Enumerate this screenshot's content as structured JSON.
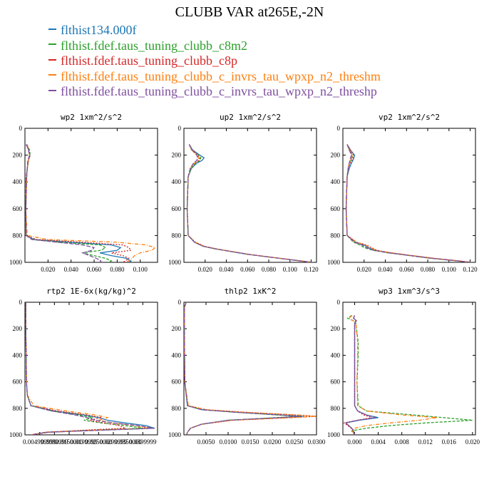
{
  "figure": {
    "title": "CLUBB VAR at265E,-2N"
  },
  "legend": [
    {
      "label": "flthist134.000f",
      "color": "#1f77b4"
    },
    {
      "label": "flthist.fdef.taus_tuning_clubb_c8m2",
      "color": "#2ca02c"
    },
    {
      "label": "flthist.fdef.taus_tuning_clubb_c8p",
      "color": "#d62728"
    },
    {
      "label": "flthist.fdef.taus_tuning_clubb_c_invrs_tau_wpxp_n2_threshm",
      "color": "#ff7f0e"
    },
    {
      "label": "flthist.fdef.taus_tuning_clubb_c_invrs_tau_wpxp_n2_threshp",
      "color": "#7f4fa0"
    }
  ],
  "chart_data": [
    {
      "type": "line",
      "title": "wp2  1xm^2/s^2",
      "xlim": [
        0.0,
        0.115
      ],
      "ylim": [
        1000,
        0
      ],
      "xticks": [
        0.02,
        0.04,
        0.06,
        0.08,
        0.1
      ],
      "xtick_labels": [
        "0.020",
        "0.040",
        "0.060",
        "0.080",
        "0.100"
      ],
      "yticks": [
        0,
        200,
        400,
        600,
        800,
        1000
      ],
      "y": [
        120,
        160,
        200,
        240,
        300,
        370,
        600,
        800,
        830,
        850,
        870,
        890,
        910,
        930,
        950,
        970,
        990,
        1000
      ],
      "series": [
        {
          "color": "#1f77b4",
          "dash": "solid",
          "values": [
            0.002,
            0.003,
            0.004,
            0.003,
            0.002,
            0.0015,
            0.0008,
            0.001,
            0.008,
            0.04,
            0.075,
            0.083,
            0.08,
            0.065,
            0.075,
            0.088,
            0.092,
            0.09
          ]
        },
        {
          "color": "#2ca02c",
          "dash": "4,2",
          "values": [
            0.001,
            0.004,
            0.0045,
            0.003,
            0.002,
            0.001,
            0.0008,
            0.001,
            0.007,
            0.03,
            0.065,
            0.07,
            0.066,
            0.05,
            0.06,
            0.07,
            0.075,
            0.072
          ]
        },
        {
          "color": "#d62728",
          "dash": "2,2",
          "values": [
            0.002,
            0.003,
            0.0045,
            0.003,
            0.002,
            0.0015,
            0.0008,
            0.001,
            0.01,
            0.05,
            0.085,
            0.09,
            0.092,
            0.075,
            0.085,
            0.09,
            0.087,
            0.085
          ]
        },
        {
          "color": "#ff7f0e",
          "dash": "5,2,1,2",
          "values": [
            0.002,
            0.003,
            0.004,
            0.003,
            0.002,
            0.0015,
            0.0008,
            0.002,
            0.02,
            0.08,
            0.105,
            0.113,
            0.11,
            0.1,
            0.095,
            0.093,
            0.09,
            0.088
          ]
        },
        {
          "color": "#7f4fa0",
          "dash": "6,2",
          "values": [
            0.001,
            0.003,
            0.004,
            0.0025,
            0.002,
            0.001,
            0.0008,
            0.001,
            0.006,
            0.028,
            0.05,
            0.06,
            0.058,
            0.05,
            0.056,
            0.062,
            0.066,
            0.065
          ]
        }
      ]
    },
    {
      "type": "line",
      "title": "up2  1xm^2/s^2",
      "xlim": [
        0.0,
        0.125
      ],
      "ylim": [
        1000,
        0
      ],
      "xticks": [
        0.02,
        0.04,
        0.06,
        0.08,
        0.1,
        0.12
      ],
      "xtick_labels": [
        "0.020",
        "0.040",
        "0.060",
        "0.080",
        "0.100",
        "0.120"
      ],
      "yticks": [
        0,
        200,
        400,
        600,
        800,
        1000
      ],
      "y": [
        120,
        160,
        200,
        220,
        240,
        260,
        300,
        360,
        600,
        800,
        850,
        880,
        900,
        920,
        940,
        960,
        980,
        1000
      ],
      "series": [
        {
          "color": "#1f77b4",
          "dash": "solid",
          "values": [
            0.005,
            0.008,
            0.015,
            0.019,
            0.017,
            0.012,
            0.007,
            0.004,
            0.003,
            0.004,
            0.01,
            0.018,
            0.03,
            0.045,
            0.06,
            0.08,
            0.1,
            0.122
          ]
        },
        {
          "color": "#2ca02c",
          "dash": "4,2",
          "values": [
            0.005,
            0.007,
            0.014,
            0.016,
            0.015,
            0.011,
            0.007,
            0.004,
            0.003,
            0.004,
            0.01,
            0.018,
            0.03,
            0.045,
            0.06,
            0.08,
            0.1,
            0.12
          ]
        },
        {
          "color": "#d62728",
          "dash": "2,2",
          "values": [
            0.005,
            0.008,
            0.013,
            0.015,
            0.014,
            0.01,
            0.006,
            0.004,
            0.003,
            0.004,
            0.011,
            0.019,
            0.031,
            0.046,
            0.061,
            0.081,
            0.1,
            0.12
          ]
        },
        {
          "color": "#ff7f0e",
          "dash": "5,2,1,2",
          "values": [
            0.005,
            0.007,
            0.012,
            0.014,
            0.013,
            0.01,
            0.006,
            0.004,
            0.003,
            0.004,
            0.011,
            0.019,
            0.031,
            0.046,
            0.061,
            0.081,
            0.101,
            0.121
          ]
        },
        {
          "color": "#7f4fa0",
          "dash": "6,2",
          "values": [
            0.005,
            0.008,
            0.012,
            0.013,
            0.012,
            0.009,
            0.006,
            0.004,
            0.003,
            0.004,
            0.01,
            0.018,
            0.03,
            0.045,
            0.06,
            0.08,
            0.1,
            0.12
          ]
        }
      ]
    },
    {
      "type": "line",
      "title": "vp2  1xm^2/s^2",
      "xlim": [
        0.0,
        0.125
      ],
      "ylim": [
        1000,
        0
      ],
      "xticks": [
        0.02,
        0.04,
        0.06,
        0.08,
        0.1,
        0.12
      ],
      "xtick_labels": [
        "0.020",
        "0.040",
        "0.060",
        "0.080",
        "0.100",
        "0.120"
      ],
      "yticks": [
        0,
        200,
        400,
        600,
        800,
        1000
      ],
      "y": [
        120,
        160,
        200,
        230,
        260,
        300,
        360,
        600,
        800,
        850,
        870,
        890,
        910,
        930,
        950,
        970,
        990,
        1000
      ],
      "series": [
        {
          "color": "#1f77b4",
          "dash": "solid",
          "values": [
            0.004,
            0.007,
            0.011,
            0.01,
            0.008,
            0.006,
            0.004,
            0.003,
            0.004,
            0.012,
            0.02,
            0.024,
            0.03,
            0.045,
            0.065,
            0.085,
            0.11,
            0.122
          ]
        },
        {
          "color": "#2ca02c",
          "dash": "4,2",
          "values": [
            0.004,
            0.006,
            0.009,
            0.008,
            0.006,
            0.005,
            0.004,
            0.003,
            0.004,
            0.01,
            0.016,
            0.02,
            0.028,
            0.043,
            0.063,
            0.083,
            0.108,
            0.12
          ]
        },
        {
          "color": "#d62728",
          "dash": "2,2",
          "values": [
            0.004,
            0.007,
            0.01,
            0.009,
            0.007,
            0.005,
            0.004,
            0.003,
            0.004,
            0.013,
            0.022,
            0.027,
            0.032,
            0.046,
            0.066,
            0.086,
            0.11,
            0.121
          ]
        },
        {
          "color": "#ff7f0e",
          "dash": "5,2,1,2",
          "values": [
            0.004,
            0.006,
            0.009,
            0.008,
            0.006,
            0.005,
            0.004,
            0.003,
            0.004,
            0.013,
            0.021,
            0.026,
            0.031,
            0.046,
            0.066,
            0.086,
            0.11,
            0.121
          ]
        },
        {
          "color": "#7f4fa0",
          "dash": "6,2",
          "values": [
            0.004,
            0.006,
            0.008,
            0.007,
            0.006,
            0.005,
            0.004,
            0.003,
            0.004,
            0.011,
            0.018,
            0.022,
            0.029,
            0.044,
            0.064,
            0.084,
            0.109,
            0.12
          ]
        }
      ]
    },
    {
      "type": "line",
      "title": "rtp2  1E-6x(kg/kg)^2",
      "xlim": [
        0.0,
        0.045
      ],
      "ylim": [
        1000,
        0
      ],
      "xticks": [
        0.005,
        0.01,
        0.015,
        0.02,
        0.025,
        0.03,
        0.035,
        0.04
      ],
      "xtick_labels": [
        "0.004999999",
        "0.0099999",
        "0.0150000",
        "0.0199999",
        "0.0250000",
        "0.0299999",
        "0.0350000",
        "0.0399999"
      ],
      "yticks": [
        0,
        200,
        400,
        600,
        800,
        1000
      ],
      "y": [
        0,
        200,
        400,
        600,
        700,
        780,
        820,
        850,
        870,
        890,
        910,
        930,
        950,
        965,
        980,
        1000
      ],
      "series": [
        {
          "color": "#1f77b4",
          "dash": "solid",
          "values": [
            0.0003,
            0.0003,
            0.0004,
            0.0005,
            0.0008,
            0.002,
            0.01,
            0.02,
            0.025,
            0.028,
            0.034,
            0.041,
            0.044,
            0.025,
            0.008,
            0.002
          ]
        },
        {
          "color": "#2ca02c",
          "dash": "4,2",
          "values": [
            0.0003,
            0.0003,
            0.0004,
            0.0005,
            0.0008,
            0.002,
            0.009,
            0.018,
            0.023,
            0.02,
            0.026,
            0.034,
            0.04,
            0.022,
            0.007,
            0.002
          ]
        },
        {
          "color": "#d62728",
          "dash": "2,2",
          "values": [
            0.0003,
            0.0003,
            0.0004,
            0.0005,
            0.0008,
            0.002,
            0.011,
            0.021,
            0.026,
            0.022,
            0.027,
            0.032,
            0.034,
            0.02,
            0.007,
            0.002
          ]
        },
        {
          "color": "#ff7f0e",
          "dash": "5,2,1,2",
          "values": [
            0.0003,
            0.0003,
            0.0004,
            0.0005,
            0.0008,
            0.003,
            0.014,
            0.024,
            0.028,
            0.025,
            0.03,
            0.037,
            0.042,
            0.024,
            0.008,
            0.002
          ]
        },
        {
          "color": "#7f4fa0",
          "dash": "6,2",
          "values": [
            0.0003,
            0.0003,
            0.0004,
            0.0005,
            0.0008,
            0.002,
            0.009,
            0.017,
            0.021,
            0.024,
            0.03,
            0.038,
            0.044,
            0.026,
            0.008,
            0.002
          ]
        }
      ]
    },
    {
      "type": "line",
      "title": "thlp2  1xK^2",
      "xlim": [
        0.0,
        0.03
      ],
      "ylim": [
        1000,
        0
      ],
      "xticks": [
        0.005,
        0.01,
        0.015,
        0.02,
        0.025,
        0.03
      ],
      "xtick_labels": [
        "0.0050",
        "0.0100",
        "0.0150",
        "0.0200",
        "0.0250",
        "0.0300"
      ],
      "yticks": [
        0,
        200,
        400,
        600,
        800,
        1000
      ],
      "y": [
        0,
        20,
        40,
        200,
        600,
        780,
        810,
        830,
        850,
        860,
        870,
        890,
        920,
        950,
        980,
        1000
      ],
      "series": [
        {
          "color": "#1f77b4",
          "dash": "solid",
          "values": [
            0.0005,
            0.0003,
            0.0001,
            0.0001,
            0.0002,
            0.0008,
            0.004,
            0.012,
            0.022,
            0.027,
            0.022,
            0.01,
            0.004,
            0.0015,
            0.0008,
            0.0006
          ]
        },
        {
          "color": "#2ca02c",
          "dash": "4,2",
          "values": [
            0.0005,
            0.0003,
            0.0001,
            0.0001,
            0.0002,
            0.0008,
            0.004,
            0.012,
            0.021,
            0.026,
            0.021,
            0.01,
            0.004,
            0.0015,
            0.0008,
            0.0006
          ]
        },
        {
          "color": "#d62728",
          "dash": "2,2",
          "values": [
            0.0005,
            0.0003,
            0.0001,
            0.0001,
            0.0002,
            0.0009,
            0.005,
            0.014,
            0.025,
            0.03,
            0.024,
            0.011,
            0.004,
            0.0015,
            0.0008,
            0.0006
          ]
        },
        {
          "color": "#ff7f0e",
          "dash": "5,2,1,2",
          "values": [
            0.0005,
            0.0003,
            0.0001,
            0.0001,
            0.0002,
            0.001,
            0.005,
            0.014,
            0.026,
            0.03,
            0.025,
            0.011,
            0.004,
            0.0015,
            0.0008,
            0.0006
          ]
        },
        {
          "color": "#7f4fa0",
          "dash": "6,2",
          "values": [
            0.0005,
            0.0003,
            0.0001,
            0.0001,
            0.0002,
            0.0008,
            0.004,
            0.012,
            0.022,
            0.026,
            0.022,
            0.01,
            0.004,
            0.0015,
            0.0008,
            0.0006
          ]
        }
      ]
    },
    {
      "type": "line",
      "title": "wp3  1xm^3/s^3",
      "xlim": [
        -0.002,
        0.0205
      ],
      "ylim": [
        1000,
        0
      ],
      "xticks": [
        0.0,
        0.004,
        0.008,
        0.012,
        0.016,
        0.02
      ],
      "xtick_labels": [
        "0.000",
        "0.004",
        "0.008",
        "0.012",
        "0.016",
        "0.020"
      ],
      "yticks": [
        0,
        200,
        400,
        600,
        800,
        1000
      ],
      "y": [
        100,
        120,
        140,
        160,
        200,
        300,
        400,
        600,
        780,
        820,
        850,
        870,
        890,
        910,
        930,
        950,
        970,
        1000
      ],
      "series": [
        {
          "color": "#1f77b4",
          "dash": "solid",
          "values": [
            0.0,
            -0.0002,
            0.0003,
            0.0,
            0.0,
            0.0,
            0.0,
            0.0,
            0.0,
            0.0005,
            0.002,
            0.004,
            0.0008,
            -0.0015,
            -0.001,
            -0.0005,
            -0.0002,
            0.0
          ]
        },
        {
          "color": "#2ca02c",
          "dash": "4,2",
          "values": [
            -0.0005,
            -0.0012,
            -0.0002,
            0.0002,
            0.0003,
            0.0006,
            0.0006,
            0.0004,
            0.0006,
            0.002,
            0.01,
            0.015,
            0.02,
            0.012,
            0.006,
            0.002,
            -0.0005,
            0.0
          ]
        },
        {
          "color": "#d62728",
          "dash": "2,2",
          "values": [
            0.0,
            -0.0002,
            0.0003,
            0.0,
            0.0,
            0.0,
            0.0,
            0.0,
            0.0,
            0.0005,
            0.0015,
            0.003,
            0.0005,
            -0.0018,
            -0.0012,
            -0.0006,
            -0.0002,
            0.0
          ]
        },
        {
          "color": "#ff7f0e",
          "dash": "5,2,1,2",
          "values": [
            -0.0004,
            -0.001,
            -0.0002,
            0.0002,
            0.0003,
            0.0005,
            0.0005,
            0.0004,
            0.0005,
            0.002,
            0.008,
            0.014,
            0.011,
            0.006,
            0.002,
            0.0,
            -0.0004,
            0.0
          ]
        },
        {
          "color": "#7f4fa0",
          "dash": "6,2",
          "values": [
            0.0,
            -0.0002,
            0.0002,
            0.0,
            0.0,
            0.0,
            0.0,
            0.0,
            0.0,
            0.0005,
            0.002,
            0.0035,
            0.0005,
            -0.0016,
            -0.001,
            -0.0005,
            -0.0002,
            0.0
          ]
        }
      ]
    }
  ]
}
